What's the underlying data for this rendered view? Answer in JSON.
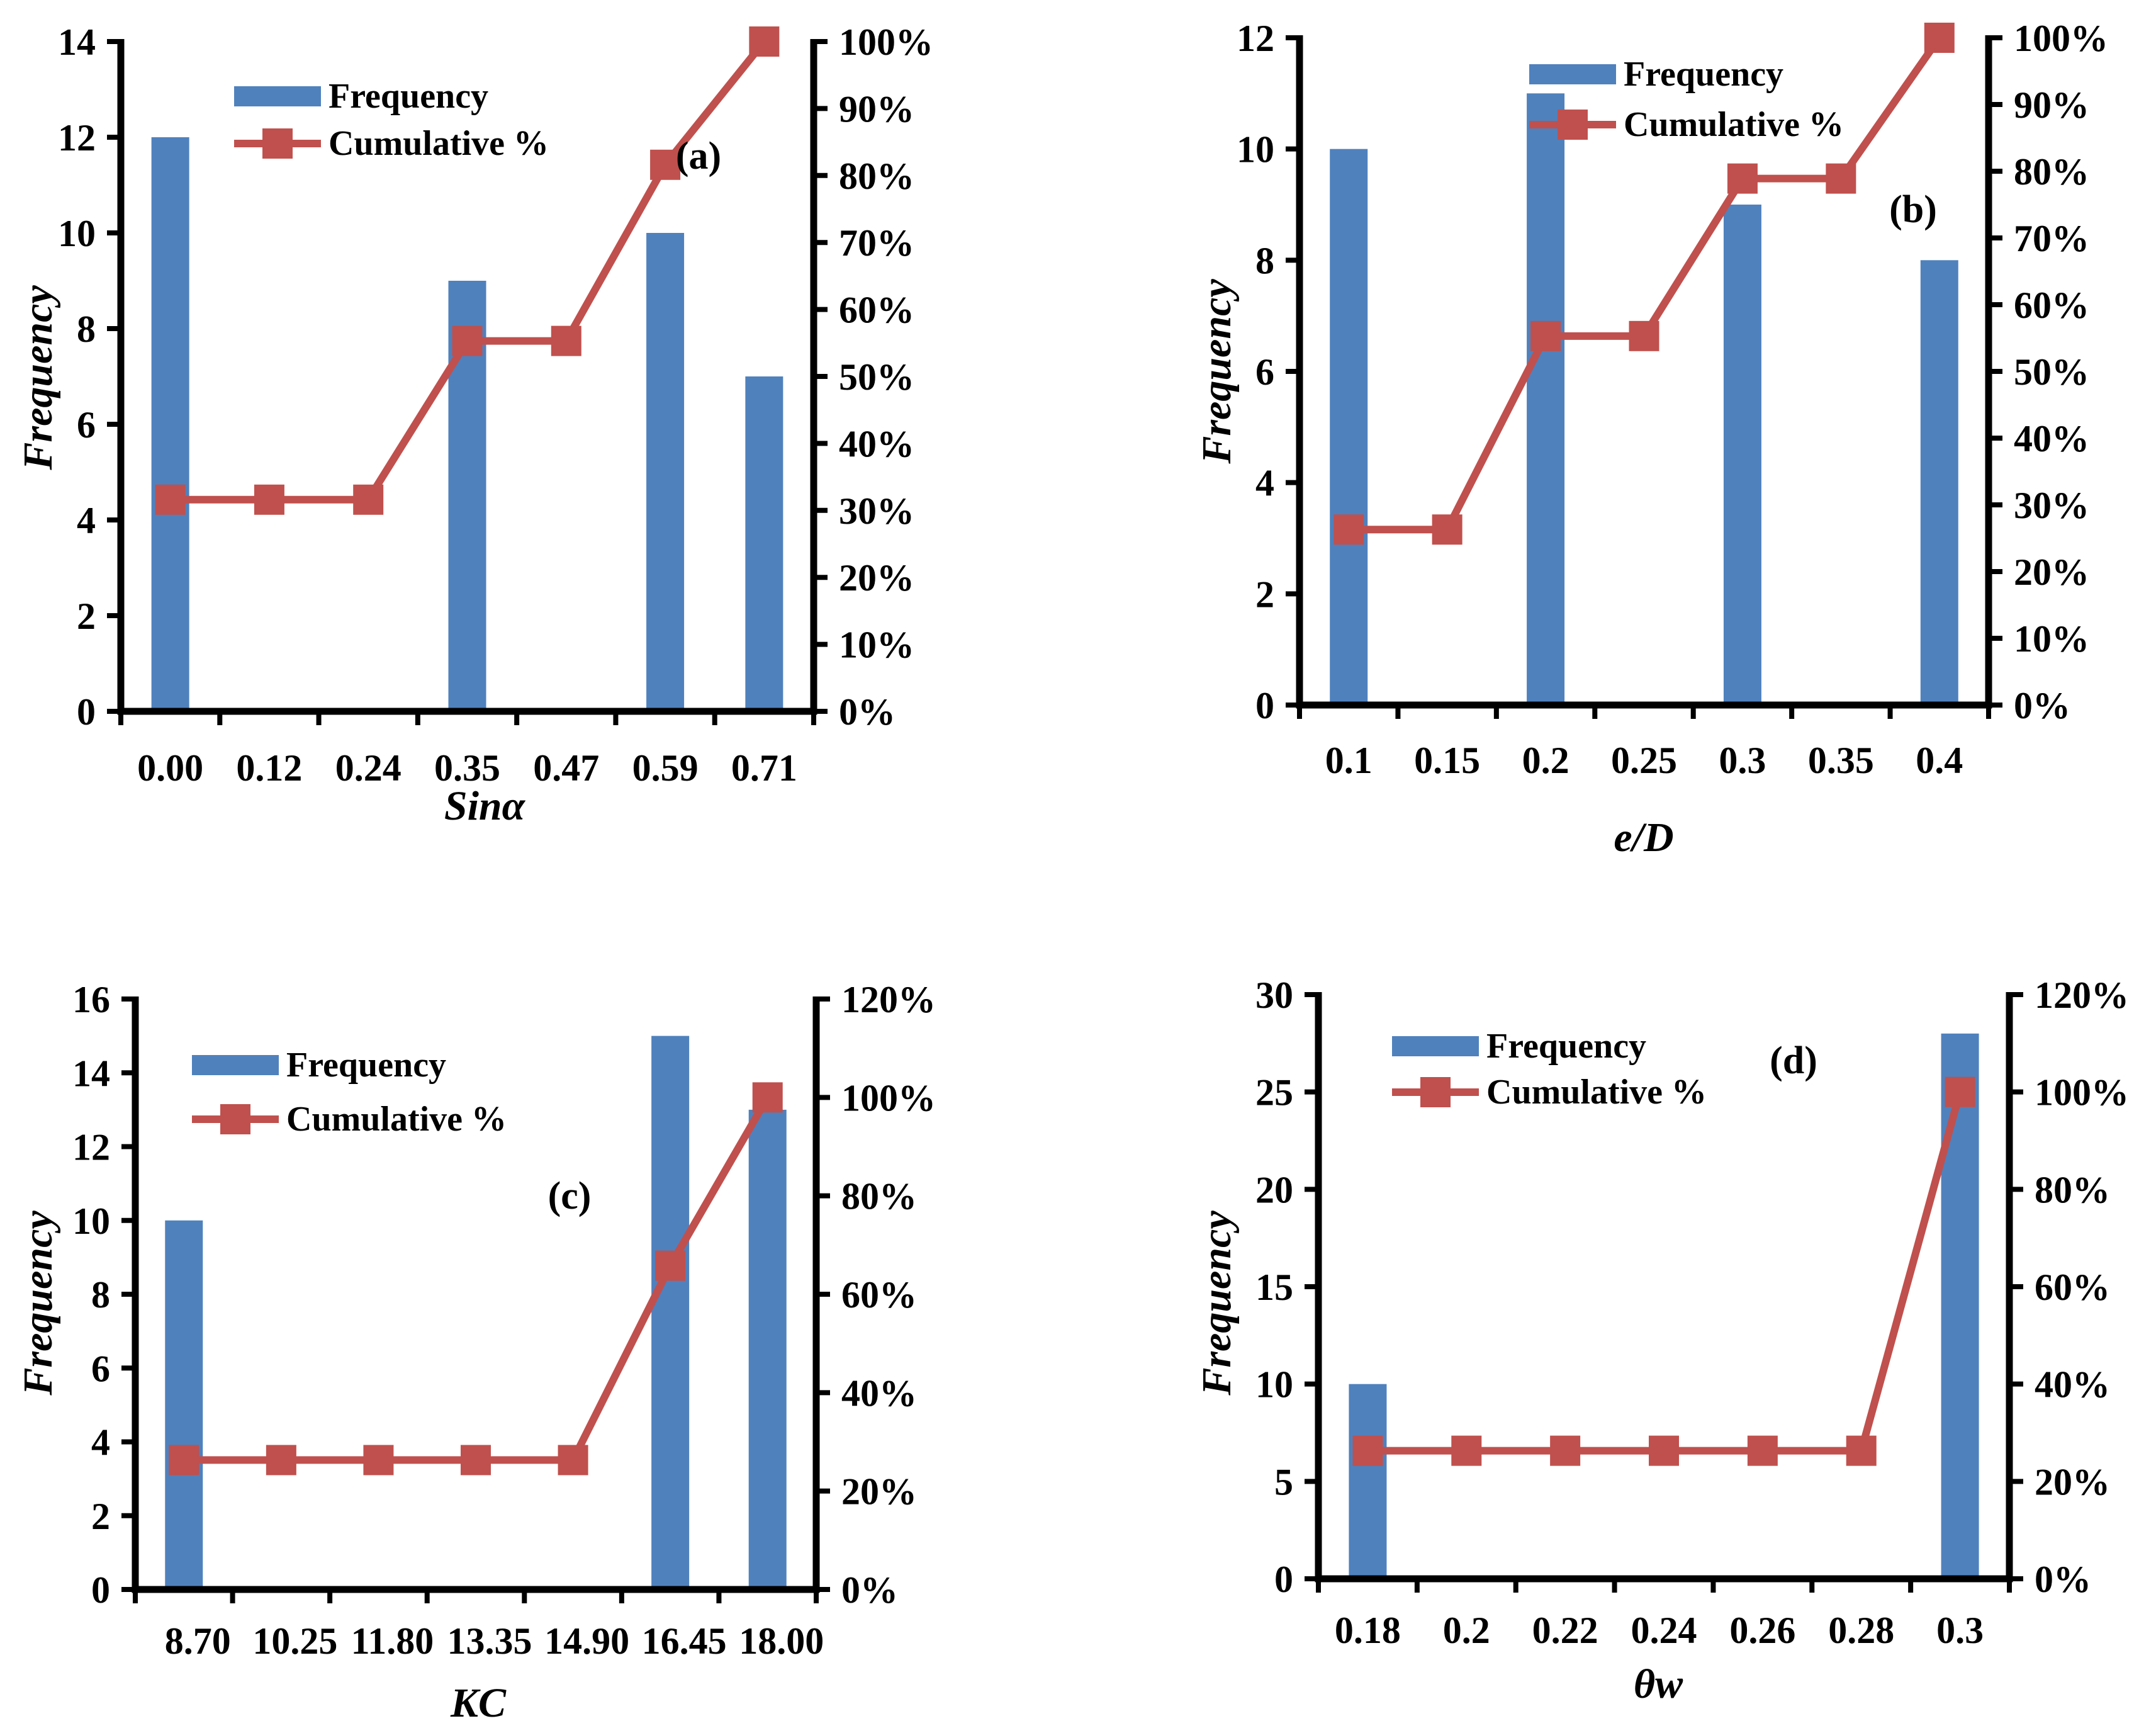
{
  "colors": {
    "bar": "#4f81bd",
    "line": "#c0504d",
    "axis": "#000000"
  },
  "chart_data": [
    {
      "type": "bar",
      "panel_label": "(a)",
      "categories": [
        "0.00",
        "0.12",
        "0.24",
        "0.35",
        "0.47",
        "0.59",
        "0.71"
      ],
      "series": [
        {
          "name": "Frequency",
          "type": "bar",
          "axis": "left",
          "values": [
            12,
            0,
            0,
            9,
            0,
            10,
            7
          ]
        },
        {
          "name": "Cumulative %",
          "type": "line",
          "axis": "right",
          "values": [
            31.6,
            31.6,
            31.6,
            55.3,
            55.3,
            81.6,
            100
          ]
        }
      ],
      "xlabel": "Sinα",
      "ylabel": "Frequency",
      "ylim": [
        0,
        14
      ],
      "yticks": [
        "0",
        "2",
        "4",
        "6",
        "8",
        "10",
        "12",
        "14"
      ],
      "y2lim": [
        0,
        100
      ],
      "y2ticks": [
        "0%",
        "10%",
        "20%",
        "30%",
        "40%",
        "50%",
        "60%",
        "70%",
        "80%",
        "90%",
        "100%"
      ],
      "legend_position": "top-left"
    },
    {
      "type": "bar",
      "panel_label": "(b)",
      "categories": [
        "0.1",
        "0.15",
        "0.2",
        "0.25",
        "0.3",
        "0.35",
        "0.4"
      ],
      "series": [
        {
          "name": "Frequency",
          "type": "bar",
          "axis": "left",
          "values": [
            10,
            0,
            11,
            0,
            9,
            0,
            8
          ]
        },
        {
          "name": "Cumulative %",
          "type": "line",
          "axis": "right",
          "values": [
            26.3,
            26.3,
            55.3,
            55.3,
            78.9,
            78.9,
            100
          ]
        }
      ],
      "xlabel": "e/D",
      "ylabel": "Frequency",
      "ylim": [
        0,
        12
      ],
      "yticks": [
        "0",
        "2",
        "4",
        "6",
        "8",
        "10",
        "12"
      ],
      "y2lim": [
        0,
        100
      ],
      "y2ticks": [
        "0%",
        "10%",
        "20%",
        "30%",
        "40%",
        "50%",
        "60%",
        "70%",
        "80%",
        "90%",
        "100%"
      ],
      "legend_position": "top-center"
    },
    {
      "type": "bar",
      "panel_label": "(c)",
      "categories": [
        "8.70",
        "10.25",
        "11.80",
        "13.35",
        "14.90",
        "16.45",
        "18.00"
      ],
      "series": [
        {
          "name": "Frequency",
          "type": "bar",
          "axis": "left",
          "values": [
            10,
            0,
            0,
            0,
            0,
            15,
            13
          ]
        },
        {
          "name": "Cumulative %",
          "type": "line",
          "axis": "right",
          "values": [
            26.3,
            26.3,
            26.3,
            26.3,
            26.3,
            65.8,
            100
          ]
        }
      ],
      "xlabel": "KC",
      "ylabel": "Frequency",
      "ylim": [
        0,
        16
      ],
      "yticks": [
        "0",
        "2",
        "4",
        "6",
        "8",
        "10",
        "12",
        "14",
        "16"
      ],
      "y2lim": [
        0,
        120
      ],
      "y2ticks": [
        "0%",
        "20%",
        "40%",
        "60%",
        "80%",
        "100%",
        "120%"
      ],
      "legend_position": "top-left"
    },
    {
      "type": "bar",
      "panel_label": "(d)",
      "categories": [
        "0.18",
        "0.2",
        "0.22",
        "0.24",
        "0.26",
        "0.28",
        "0.3"
      ],
      "series": [
        {
          "name": "Frequency",
          "type": "bar",
          "axis": "left",
          "values": [
            10,
            0,
            0,
            0,
            0,
            0,
            28
          ]
        },
        {
          "name": "Cumulative %",
          "type": "line",
          "axis": "right",
          "values": [
            26.3,
            26.3,
            26.3,
            26.3,
            26.3,
            26.3,
            100
          ]
        }
      ],
      "xlabel": "θw",
      "ylabel": "Frequency",
      "ylim": [
        0,
        30
      ],
      "yticks": [
        "0",
        "5",
        "10",
        "15",
        "20",
        "25",
        "30"
      ],
      "y2lim": [
        0,
        120
      ],
      "y2ticks": [
        "0%",
        "20%",
        "40%",
        "60%",
        "80%",
        "100%",
        "120%"
      ],
      "legend_position": "top-left"
    }
  ]
}
